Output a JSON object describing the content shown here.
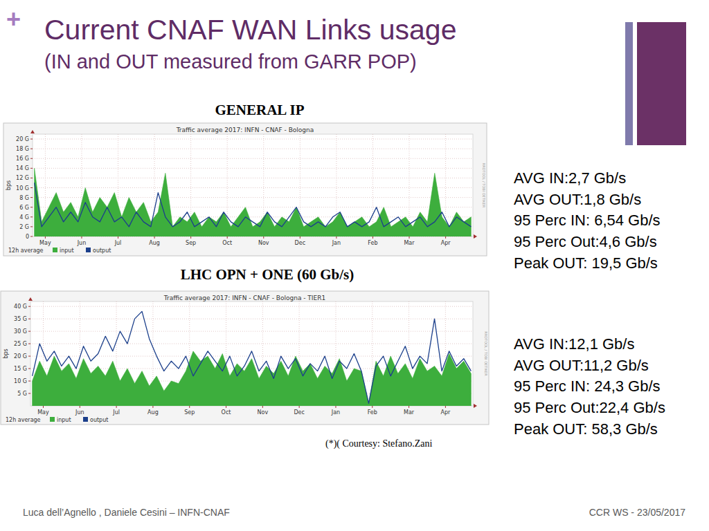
{
  "slide": {
    "bullet": "+",
    "title": "Current CNAF WAN Links usage",
    "subtitle": "(IN and OUT measured from GARR POP)",
    "courtesy": "(*)( Courtesy: Stefano.Zani",
    "footer_left": "Luca dell’Agnello , Daniele Cesini – INFN-CNAF",
    "footer_right": "CCR WS - 23/05/2017"
  },
  "chart_data": [
    {
      "type": "line",
      "heading": "GENERAL IP",
      "title": "Traffic average 2017: INFN - CNAF - Bologna",
      "y_label": "bps",
      "annotations": [
        "12h average",
        "RRDTOOL / TOBI OETIKER"
      ],
      "x": [
        -0.3,
        -0.1,
        0.1,
        0.3,
        0.5,
        0.7,
        0.9,
        1.1,
        1.3,
        1.5,
        1.7,
        1.9,
        2.1,
        2.3,
        2.5,
        2.7,
        2.9,
        3.1,
        3.3,
        3.5,
        3.7,
        3.9,
        4.1,
        4.3,
        4.5,
        4.7,
        4.9,
        5.1,
        5.3,
        5.5,
        5.7,
        5.9,
        6.1,
        6.3,
        6.5,
        6.7,
        6.9,
        7.1,
        7.3,
        7.5,
        7.7,
        7.9,
        8.1,
        8.3,
        8.5,
        8.7,
        8.9,
        9.1,
        9.3,
        9.5,
        9.7,
        9.9,
        10.1,
        10.3,
        10.5,
        10.7,
        10.9,
        11.1,
        11.3,
        11.5,
        11.7
      ],
      "xlim": [
        -0.35,
        11.75
      ],
      "xticks": [
        {
          "value": 0,
          "label": "May"
        },
        {
          "value": 1,
          "label": "Jun"
        },
        {
          "value": 2,
          "label": "Jul"
        },
        {
          "value": 3,
          "label": "Aug"
        },
        {
          "value": 4,
          "label": "Sep"
        },
        {
          "value": 5,
          "label": "Oct"
        },
        {
          "value": 6,
          "label": "Nov"
        },
        {
          "value": 7,
          "label": "Dec"
        },
        {
          "value": 8,
          "label": "Jan"
        },
        {
          "value": 9,
          "label": "Feb"
        },
        {
          "value": 10,
          "label": "Mar"
        },
        {
          "value": 11,
          "label": "Apr"
        }
      ],
      "ylim": [
        0,
        21
      ],
      "yticks": [
        0,
        {
          "value": 2,
          "label": "2 G"
        },
        {
          "value": 4,
          "label": "4 G"
        },
        {
          "value": 6,
          "label": "6 G"
        },
        {
          "value": 8,
          "label": "8 G"
        },
        {
          "value": 10,
          "label": "10 G"
        },
        {
          "value": 12,
          "label": "12 G"
        },
        {
          "value": 14,
          "label": "14 G"
        },
        {
          "value": 16,
          "label": "16 G"
        },
        {
          "value": 18,
          "label": "18 G"
        },
        {
          "value": 20,
          "label": "20 G"
        }
      ],
      "grid": true,
      "legend": "bottom",
      "series": [
        {
          "name": "input",
          "type": "area",
          "color": "#3dae3d",
          "values": [
            14,
            3,
            6,
            9,
            5,
            7,
            4,
            10,
            5,
            8,
            6,
            9,
            4,
            8,
            5,
            7,
            3,
            5,
            13,
            2,
            4,
            3,
            5,
            2,
            4,
            3,
            5,
            2,
            4,
            6,
            2,
            3,
            5,
            2,
            4,
            3,
            6,
            2,
            3,
            4,
            2,
            3,
            5,
            2,
            3,
            4,
            2,
            3,
            6,
            2,
            3,
            4,
            2,
            5,
            3,
            13,
            4,
            2,
            5,
            3,
            4
          ]
        },
        {
          "name": "output",
          "type": "line",
          "color": "#1b3f8b",
          "values": [
            11,
            2,
            4,
            6,
            3,
            5,
            3,
            7,
            4,
            3,
            6,
            3,
            4,
            2,
            5,
            3,
            2,
            9,
            4,
            2,
            3,
            5,
            2,
            3,
            4,
            2,
            5,
            3,
            2,
            4,
            3,
            2,
            5,
            3,
            2,
            4,
            6,
            3,
            2,
            3,
            2,
            4,
            5,
            2,
            3,
            2,
            3,
            6,
            2,
            3,
            4,
            2,
            3,
            4,
            2,
            3,
            5,
            2,
            4,
            3,
            2
          ]
        }
      ],
      "stats": [
        "AVG IN:2,7 Gb/s",
        "AVG OUT:1,8 Gb/s",
        "95 Perc IN: 6,54 Gb/s",
        "95 Perc Out:4,6 Gb/s",
        "Peak OUT: 19,5 Gb/s"
      ]
    },
    {
      "type": "line",
      "heading": "LHC OPN + ONE (60 Gb/s)",
      "title": "Traffic average 2017: INFN - CNAF - Bologna - TIER1",
      "y_label": "bps",
      "annotations": [
        "12h average",
        "RRDTOOL / TOBI OETIKER"
      ],
      "x": [
        -0.3,
        -0.1,
        0.1,
        0.3,
        0.5,
        0.7,
        0.9,
        1.1,
        1.3,
        1.5,
        1.7,
        1.9,
        2.1,
        2.3,
        2.5,
        2.7,
        2.9,
        3.1,
        3.3,
        3.5,
        3.7,
        3.9,
        4.1,
        4.3,
        4.5,
        4.7,
        4.9,
        5.1,
        5.3,
        5.5,
        5.7,
        5.9,
        6.1,
        6.3,
        6.5,
        6.7,
        6.9,
        7.1,
        7.3,
        7.5,
        7.7,
        7.9,
        8.1,
        8.3,
        8.5,
        8.7,
        8.9,
        9.1,
        9.3,
        9.5,
        9.7,
        9.9,
        10.1,
        10.3,
        10.5,
        10.7,
        10.9,
        11.1,
        11.3,
        11.5,
        11.7
      ],
      "xlim": [
        -0.35,
        11.75
      ],
      "xticks": [
        {
          "value": 0,
          "label": "May"
        },
        {
          "value": 1,
          "label": "Jun"
        },
        {
          "value": 2,
          "label": "Jul"
        },
        {
          "value": 3,
          "label": "Aug"
        },
        {
          "value": 4,
          "label": "Sep"
        },
        {
          "value": 5,
          "label": "Oct"
        },
        {
          "value": 6,
          "label": "Nov"
        },
        {
          "value": 7,
          "label": "Dec"
        },
        {
          "value": 8,
          "label": "Jan"
        },
        {
          "value": 9,
          "label": "Feb"
        },
        {
          "value": 10,
          "label": "Mar"
        },
        {
          "value": 11,
          "label": "Apr"
        }
      ],
      "ylim": [
        0,
        42
      ],
      "yticks": [
        {
          "value": 5,
          "label": "5 G"
        },
        {
          "value": 10,
          "label": "10 G"
        },
        {
          "value": 15,
          "label": "15 G"
        },
        {
          "value": 20,
          "label": "20 G"
        },
        {
          "value": 25,
          "label": "25 G"
        },
        {
          "value": 30,
          "label": "30 G"
        },
        {
          "value": 35,
          "label": "35 G"
        },
        {
          "value": 40,
          "label": "40 G"
        }
      ],
      "grid": true,
      "legend": "bottom",
      "series": [
        {
          "name": "input",
          "type": "area",
          "color": "#3dae3d",
          "values": [
            10,
            18,
            12,
            20,
            14,
            17,
            11,
            19,
            13,
            16,
            12,
            18,
            10,
            15,
            9,
            14,
            8,
            12,
            6,
            10,
            9,
            14,
            22,
            18,
            20,
            15,
            21,
            12,
            17,
            14,
            19,
            11,
            16,
            13,
            18,
            12,
            20,
            14,
            17,
            11,
            16,
            13,
            19,
            10,
            15,
            14,
            1,
            18,
            12,
            20,
            13,
            17,
            11,
            19,
            14,
            16,
            12,
            21,
            15,
            18,
            13
          ]
        },
        {
          "name": "output",
          "type": "line",
          "color": "#1b3f8b",
          "values": [
            12,
            25,
            18,
            22,
            16,
            20,
            15,
            24,
            18,
            21,
            28,
            22,
            30,
            25,
            35,
            38,
            27,
            20,
            14,
            18,
            15,
            20,
            12,
            17,
            22,
            18,
            14,
            20,
            12,
            16,
            22,
            14,
            18,
            11,
            20,
            15,
            19,
            12,
            17,
            14,
            20,
            11,
            18,
            15,
            21,
            14,
            1,
            16,
            20,
            12,
            18,
            24,
            15,
            20,
            17,
            35,
            14,
            22,
            16,
            19,
            14
          ]
        }
      ],
      "stats": [
        "AVG IN:12,1 Gb/s",
        "AVG OUT:11,2 Gb/s",
        "95 Perc IN: 24,3 Gb/s",
        "95 Perc Out:22,4 Gb/s",
        "Peak OUT: 58,3 Gb/s"
      ]
    }
  ]
}
